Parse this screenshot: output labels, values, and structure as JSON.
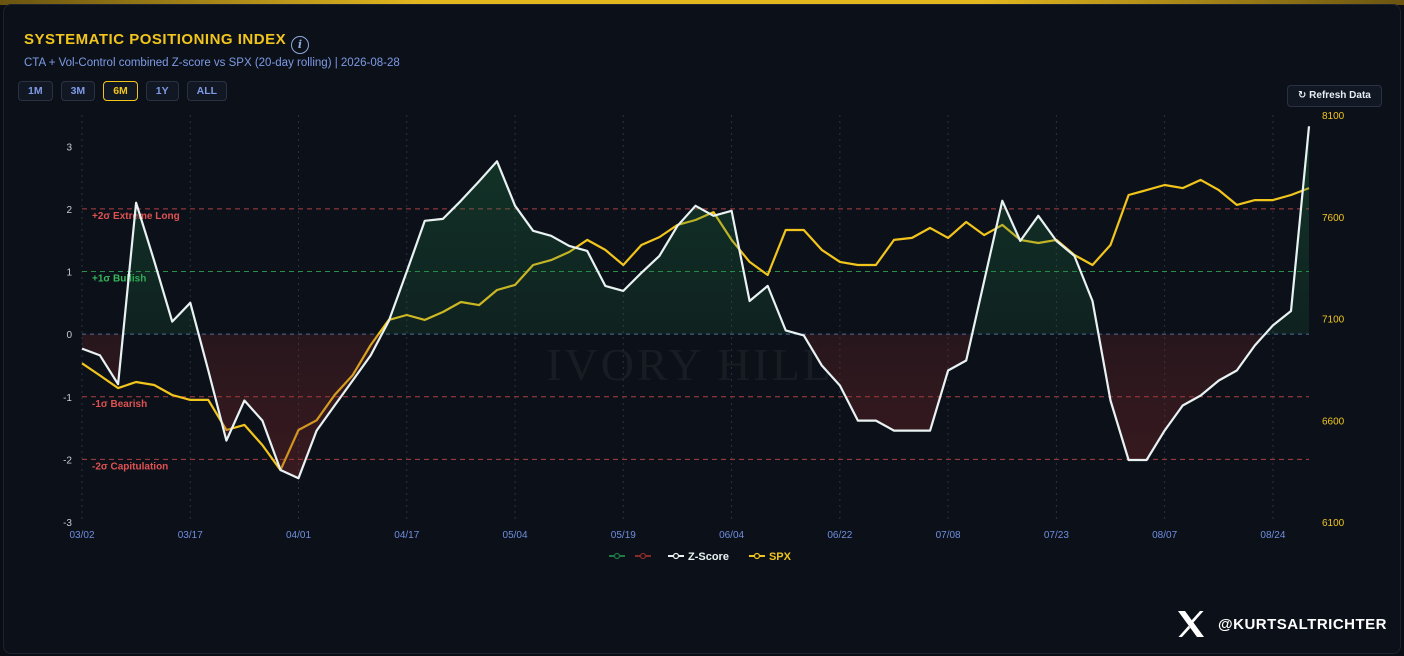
{
  "header": {
    "title": "SYSTEMATIC POSITIONING INDEX",
    "subtitle": "CTA + Vol-Control combined Z-score vs SPX (20-day rolling) | 2026-08-28"
  },
  "range_buttons": [
    "1M",
    "3M",
    "6M",
    "1Y",
    "ALL"
  ],
  "active_range_index": 2,
  "refresh_button": "↻ Refresh Data",
  "watermark": "IVORY HILL",
  "credit": "@KURTSALTRICHTER",
  "chart_data": {
    "type": "line",
    "categories": [
      "03/02",
      null,
      null,
      null,
      null,
      null,
      "03/17",
      null,
      null,
      null,
      null,
      null,
      "04/01",
      null,
      null,
      null,
      null,
      null,
      "04/17",
      null,
      null,
      null,
      null,
      null,
      "05/04",
      null,
      null,
      null,
      null,
      null,
      "05/19",
      null,
      null,
      null,
      null,
      null,
      "06/04",
      null,
      null,
      null,
      null,
      null,
      "06/22",
      null,
      null,
      null,
      null,
      null,
      "07/08",
      null,
      null,
      null,
      null,
      null,
      "07/23",
      null,
      null,
      null,
      null,
      null,
      "08/07",
      null,
      null,
      null,
      null,
      null,
      "08/24",
      null,
      null
    ],
    "series": [
      {
        "name": "Z-Score",
        "color": "#e9f2f2",
        "axis": "y",
        "values": [
          -0.23,
          -0.34,
          -0.8,
          2.1,
          1.17,
          0.2,
          0.5,
          -0.58,
          -1.7,
          -1.06,
          -1.38,
          -2.17,
          -2.3,
          -1.54,
          -1.14,
          -0.74,
          -0.34,
          0.21,
          1.0,
          1.81,
          1.84,
          2.13,
          2.44,
          2.76,
          2.05,
          1.65,
          1.57,
          1.41,
          1.33,
          0.77,
          0.69,
          0.98,
          1.25,
          1.73,
          2.05,
          1.89,
          1.97,
          0.53,
          0.77,
          0.06,
          -0.02,
          -0.5,
          -0.82,
          -1.38,
          -1.38,
          -1.54,
          -1.54,
          -1.54,
          -0.58,
          -0.42,
          0.85,
          2.13,
          1.49,
          1.89,
          1.49,
          1.25,
          0.53,
          -1.06,
          -2.01,
          -2.01,
          -1.54,
          -1.14,
          -0.98,
          -0.74,
          -0.58,
          -0.18,
          0.14,
          0.37,
          3.32
        ]
      },
      {
        "name": "SPX",
        "color": "#f2c51d",
        "axis": "y2",
        "values": [
          6880,
          6820,
          6758,
          6788,
          6773,
          6724,
          6700,
          6700,
          6552,
          6577,
          6478,
          6355,
          6552,
          6600,
          6724,
          6822,
          6970,
          7093,
          7117,
          7093,
          7132,
          7181,
          7166,
          7240,
          7265,
          7363,
          7387,
          7427,
          7486,
          7437,
          7363,
          7461,
          7500,
          7560,
          7584,
          7623,
          7486,
          7378,
          7314,
          7535,
          7535,
          7437,
          7378,
          7363,
          7363,
          7486,
          7496,
          7545,
          7496,
          7574,
          7510,
          7560,
          7486,
          7471,
          7486,
          7412,
          7363,
          7461,
          7707,
          7731,
          7756,
          7741,
          7781,
          7731,
          7658,
          7682,
          7682,
          7707,
          7741
        ]
      }
    ],
    "ylim": [
      -3,
      3.5
    ],
    "yticks": [
      -3,
      -2,
      -1,
      0,
      1,
      2,
      3
    ],
    "y2lim": [
      6100,
      8100
    ],
    "y2ticks": [
      6100,
      6600,
      7100,
      7600,
      8100
    ],
    "grid": "x",
    "positive_fill_color": "#1f7a45",
    "negative_fill_color": "#8a2a2a",
    "zero_line_color": "#4d6fa8",
    "reference_lines": [
      {
        "value": 2,
        "label": "+2σ Extreme Long",
        "color": "#e05252"
      },
      {
        "value": 1,
        "label": "+1σ Bullish",
        "color": "#35b85a"
      },
      {
        "value": -1,
        "label": "-1σ Bearish",
        "color": "#e05252"
      },
      {
        "value": -2,
        "label": "-2σ Capitulation",
        "color": "#e05252"
      }
    ]
  }
}
